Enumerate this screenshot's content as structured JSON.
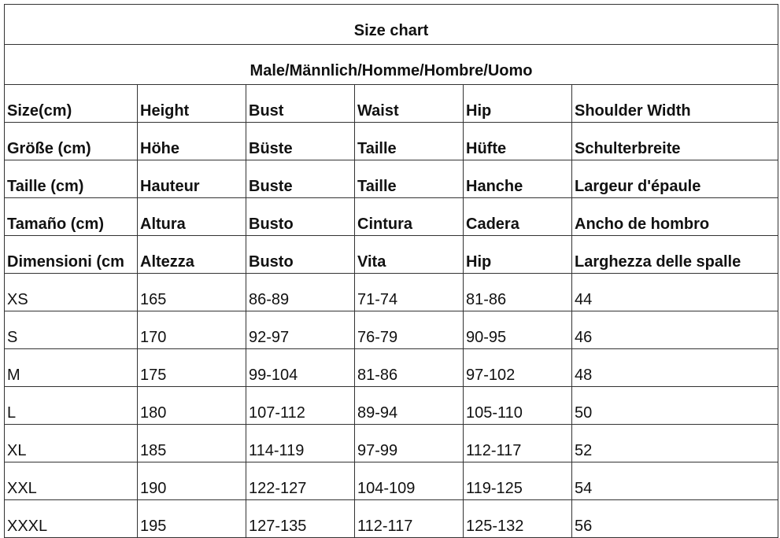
{
  "title": "Size chart",
  "subtitle": "Male/Männlich/Homme/Hombre/Uomo",
  "header_rows": [
    [
      "Size(cm)",
      "Height",
      "Bust",
      "Waist",
      "Hip",
      "Shoulder Width"
    ],
    [
      "Größe (cm)",
      "Höhe",
      "Büste",
      "Taille",
      "Hüfte",
      "Schulterbreite"
    ],
    [
      "Taille (cm)",
      "Hauteur",
      "Buste",
      "Taille",
      "Hanche",
      "Largeur d'épaule"
    ],
    [
      "Tamaño (cm)",
      "Altura",
      "Busto",
      "Cintura",
      "Cadera",
      "Ancho de hombro"
    ],
    [
      "Dimensioni (cm",
      "Altezza",
      "Busto",
      "Vita",
      "Hip",
      "Larghezza delle spalle"
    ]
  ],
  "rows": [
    [
      "XS",
      "165",
      "86-89",
      "71-74",
      "81-86",
      "44"
    ],
    [
      "S",
      "170",
      "92-97",
      "76-79",
      "90-95",
      "46"
    ],
    [
      "M",
      "175",
      "99-104",
      "81-86",
      "97-102",
      "48"
    ],
    [
      "L",
      "180",
      "107-112",
      "89-94",
      "105-110",
      "50"
    ],
    [
      "XL",
      "185",
      "114-119",
      "97-99",
      "112-117",
      "52"
    ],
    [
      "XXL",
      "190",
      "122-127",
      "104-109",
      "119-125",
      "54"
    ],
    [
      "XXXL",
      "195",
      "127-135",
      "112-117",
      "125-132",
      "56"
    ]
  ]
}
